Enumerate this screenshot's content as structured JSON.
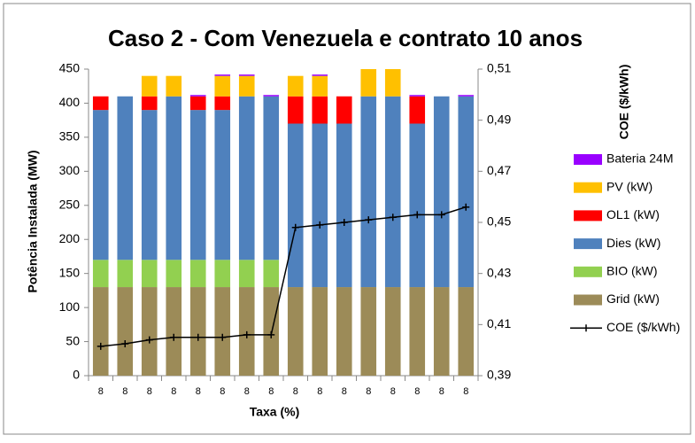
{
  "chart_data": {
    "type": "bar",
    "stacked": true,
    "title": "Caso 2 - Com Venezuela e contrato 10 anos",
    "x_label": "Taxa (%)",
    "y_label": "Potência Instalada (MW)",
    "y2_label": "COE ($/kWh)",
    "categories": [
      "8",
      "8",
      "8",
      "8",
      "8",
      "8",
      "8",
      "8",
      "8",
      "8",
      "8",
      "8",
      "8",
      "8",
      "8",
      "8"
    ],
    "series": [
      {
        "name": "Grid (kW)",
        "color": "#9c8b58",
        "values": [
          130,
          130,
          130,
          130,
          130,
          130,
          130,
          130,
          130,
          130,
          130,
          130,
          130,
          130,
          130,
          130
        ]
      },
      {
        "name": "BIO (kW)",
        "color": "#92d050",
        "values": [
          40,
          40,
          40,
          40,
          40,
          40,
          40,
          40,
          0,
          0,
          0,
          0,
          0,
          0,
          0,
          0
        ]
      },
      {
        "name": "Dies (kW)",
        "color": "#4f81bd",
        "values": [
          220,
          240,
          220,
          240,
          220,
          220,
          240,
          240,
          240,
          240,
          240,
          280,
          280,
          240,
          280,
          280
        ]
      },
      {
        "name": "OL1 (kW)",
        "color": "#ff0000",
        "values": [
          20,
          0,
          20,
          0,
          20,
          20,
          0,
          0,
          40,
          40,
          40,
          0,
          0,
          40,
          0,
          0
        ]
      },
      {
        "name": "PV (kW)",
        "color": "#ffc000",
        "values": [
          0,
          0,
          30,
          30,
          0,
          30,
          30,
          0,
          30,
          30,
          0,
          40,
          40,
          0,
          0,
          0
        ]
      },
      {
        "name": "Bateria 24M",
        "color": "#9900ff",
        "values": [
          0,
          0,
          0,
          0,
          2,
          2,
          2,
          2,
          0,
          2,
          0,
          0,
          0,
          2,
          0,
          2
        ]
      },
      {
        "name": "COE ($/kWh)",
        "color": "#000000",
        "type": "line",
        "axis": "y2",
        "values": [
          0.4015,
          0.4025,
          0.404,
          0.405,
          0.405,
          0.405,
          0.406,
          0.406,
          0.448,
          0.449,
          0.45,
          0.451,
          0.452,
          0.453,
          0.453,
          0.456
        ]
      }
    ],
    "ylim": [
      0,
      450
    ],
    "yticks": [
      0,
      50,
      100,
      150,
      200,
      250,
      300,
      350,
      400,
      450
    ],
    "y2lim": [
      0.39,
      0.51
    ],
    "y2ticks": [
      {
        "value": 0.39,
        "label": "0,39"
      },
      {
        "value": 0.41,
        "label": "0,41"
      },
      {
        "value": 0.43,
        "label": "0,43"
      },
      {
        "value": 0.45,
        "label": "0,45"
      },
      {
        "value": 0.47,
        "label": "0,47"
      },
      {
        "value": 0.49,
        "label": "0,49"
      },
      {
        "value": 0.51,
        "label": "0,51"
      }
    ],
    "grid": false,
    "legend": "right"
  }
}
